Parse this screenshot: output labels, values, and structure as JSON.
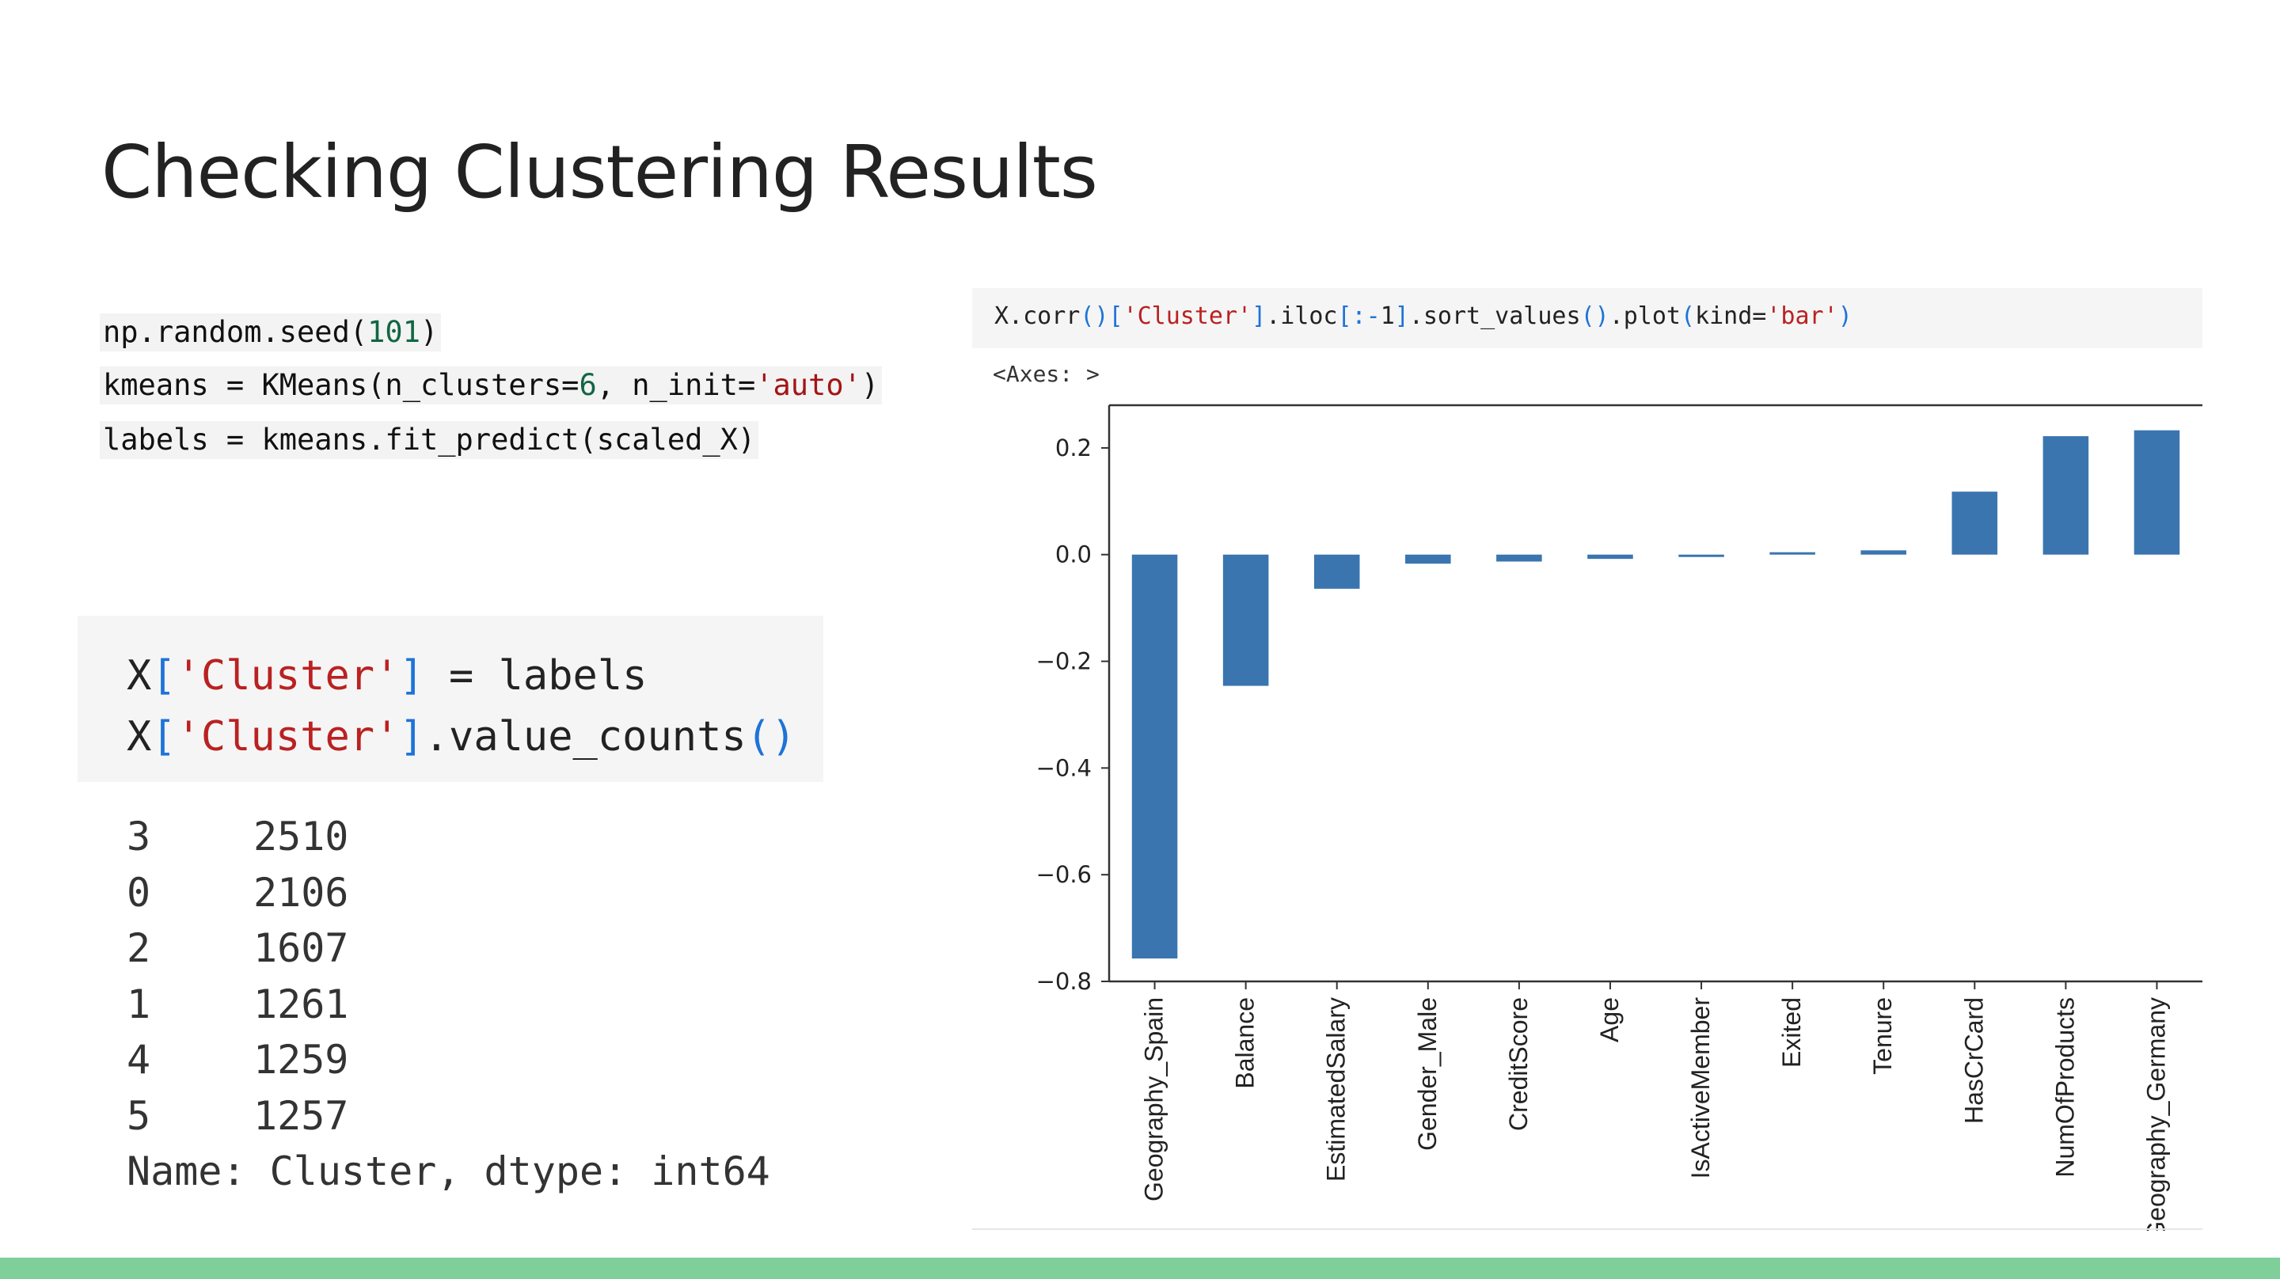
{
  "slide": {
    "title": "Checking Clustering Results"
  },
  "code_lines": [
    {
      "parts": [
        {
          "t": "np.random.seed(",
          "c": ""
        },
        {
          "t": "101",
          "c": "num"
        },
        {
          "t": ")",
          "c": ""
        }
      ]
    },
    {
      "parts": [
        {
          "t": "kmeans = KMeans(n_clusters=",
          "c": ""
        },
        {
          "t": "6",
          "c": "num"
        },
        {
          "t": ", n_init=",
          "c": ""
        },
        {
          "t": "'auto'",
          "c": "str"
        },
        {
          "t": ")",
          "c": ""
        }
      ]
    },
    {
      "parts": [
        {
          "t": "labels = kmeans.fit_predict(scaled_X)",
          "c": ""
        }
      ]
    }
  ],
  "python_cell": {
    "lines": [
      {
        "parts": [
          {
            "t": "X",
            "c": ""
          },
          {
            "t": "[",
            "c": "py-brk"
          },
          {
            "t": "'Cluster'",
            "c": "py-str"
          },
          {
            "t": "]",
            "c": "py-brk"
          },
          {
            "t": " = labels",
            "c": ""
          }
        ]
      },
      {
        "parts": [
          {
            "t": "X",
            "c": ""
          },
          {
            "t": "[",
            "c": "py-brk"
          },
          {
            "t": "'Cluster'",
            "c": "py-str"
          },
          {
            "t": "]",
            "c": "py-brk"
          },
          {
            "t": ".value_counts",
            "c": ""
          },
          {
            "t": "()",
            "c": "py-brk"
          }
        ]
      }
    ]
  },
  "value_counts": {
    "rows": [
      {
        "index": "3",
        "count": "2510"
      },
      {
        "index": "0",
        "count": "2106"
      },
      {
        "index": "2",
        "count": "1607"
      },
      {
        "index": "1",
        "count": "1261"
      },
      {
        "index": "4",
        "count": "1259"
      },
      {
        "index": "5",
        "count": "1257"
      }
    ],
    "footer": "Name: Cluster, dtype: int64"
  },
  "notebook_cell": {
    "parts": [
      {
        "t": "X.corr",
        "c": ""
      },
      {
        "t": "()[",
        "c": "nb-blue"
      },
      {
        "t": "'Cluster'",
        "c": "nb-str"
      },
      {
        "t": "]",
        "c": "nb-blue"
      },
      {
        "t": ".iloc",
        "c": ""
      },
      {
        "t": "[:-",
        "c": "nb-blue"
      },
      {
        "t": "1",
        "c": ""
      },
      {
        "t": "]",
        "c": "nb-blue"
      },
      {
        "t": ".sort_values",
        "c": ""
      },
      {
        "t": "()",
        "c": "nb-blue"
      },
      {
        "t": ".plot",
        "c": ""
      },
      {
        "t": "(",
        "c": "nb-blue"
      },
      {
        "t": "kind=",
        "c": ""
      },
      {
        "t": "'bar'",
        "c": "nb-str"
      },
      {
        "t": ")",
        "c": "nb-blue"
      }
    ]
  },
  "axes_output": "<Axes: >",
  "chart_data": {
    "type": "bar",
    "categories": [
      "Geography_Spain",
      "Balance",
      "EstimatedSalary",
      "Gender_Male",
      "CreditScore",
      "Age",
      "IsActiveMember",
      "Exited",
      "Tenure",
      "HasCrCard",
      "NumOfProducts",
      "Geography_Germany"
    ],
    "values": [
      -0.757,
      -0.246,
      -0.064,
      -0.017,
      -0.013,
      -0.008,
      -0.004,
      0.003,
      0.008,
      0.118,
      0.222,
      0.233
    ],
    "yticks": [
      {
        "value": 0.2,
        "label": "0.2"
      },
      {
        "value": 0.0,
        "label": "0.0"
      },
      {
        "value": -0.2,
        "label": "−0.2"
      },
      {
        "value": -0.4,
        "label": "−0.4"
      },
      {
        "value": -0.6,
        "label": "−0.6"
      },
      {
        "value": -0.8,
        "label": "−0.8"
      }
    ],
    "ylim": [
      -0.8,
      0.28
    ],
    "bar_color": "#3a75b0",
    "grid": false,
    "title": "",
    "xlabel": "",
    "ylabel": ""
  }
}
